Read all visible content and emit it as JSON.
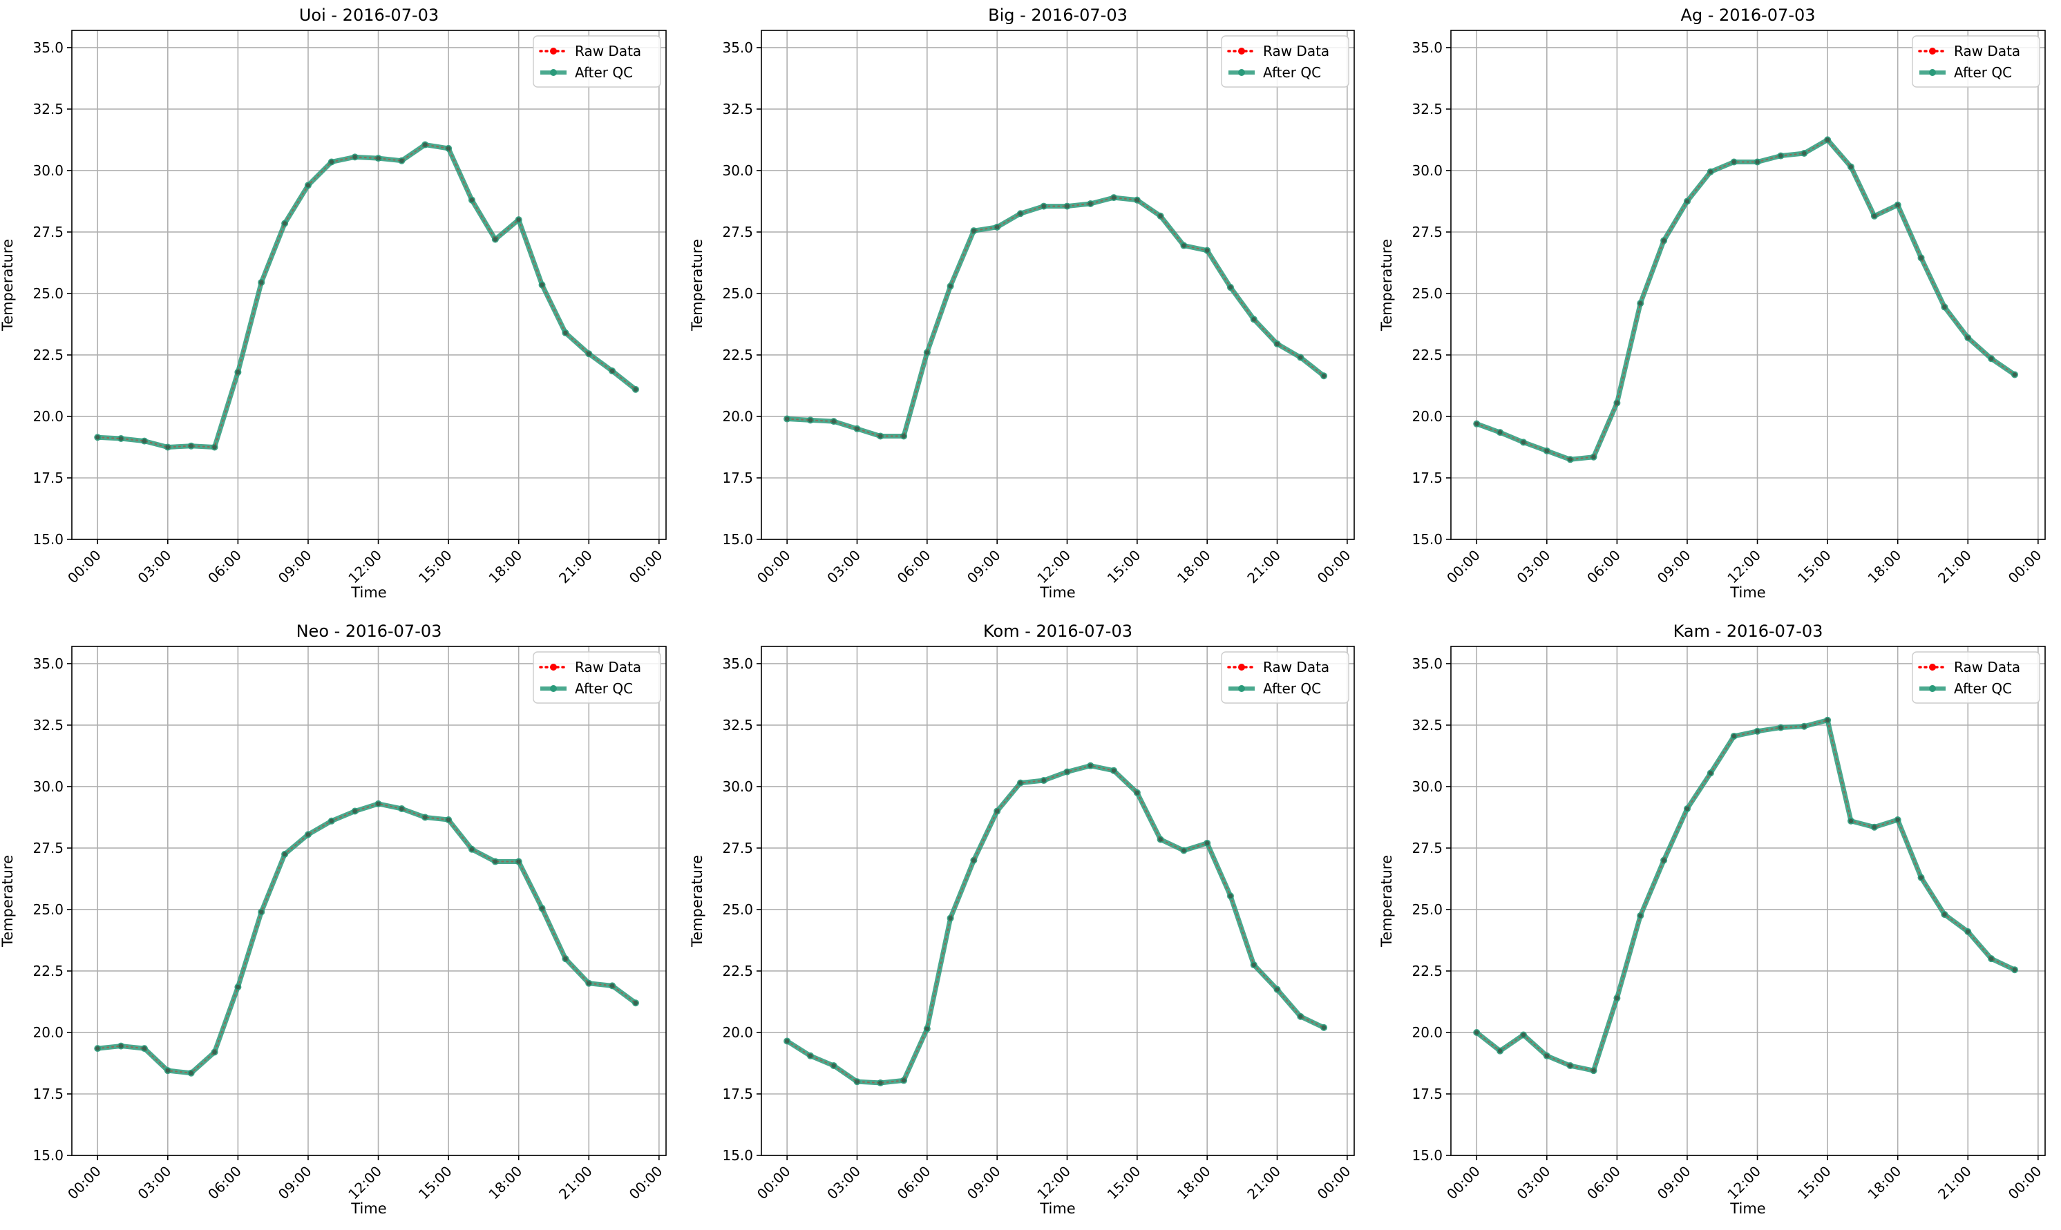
{
  "chart_data": [
    {
      "type": "line",
      "title": "Uoi - 2016-07-03",
      "xlabel": "Time",
      "ylabel": "Temperature",
      "x": [
        "00:00",
        "01:00",
        "02:00",
        "03:00",
        "04:00",
        "05:00",
        "06:00",
        "07:00",
        "08:00",
        "09:00",
        "10:00",
        "11:00",
        "12:00",
        "13:00",
        "14:00",
        "15:00",
        "16:00",
        "17:00",
        "18:00",
        "19:00",
        "20:00",
        "21:00",
        "22:00",
        "23:00"
      ],
      "x_ticks": [
        "00:00",
        "03:00",
        "06:00",
        "09:00",
        "12:00",
        "15:00",
        "18:00",
        "21:00",
        "00:00"
      ],
      "y_ticks": [
        "15.0",
        "17.5",
        "20.0",
        "22.5",
        "25.0",
        "27.5",
        "30.0",
        "32.5",
        "35.0"
      ],
      "ylim": [
        15.0,
        35.7
      ],
      "series": [
        {
          "name": "Raw Data",
          "color": "#ff0000",
          "values": [
            19.15,
            19.1,
            19.0,
            18.75,
            18.8,
            18.75,
            21.8,
            25.45,
            27.85,
            29.4,
            30.35,
            30.55,
            30.5,
            30.4,
            31.05,
            30.9,
            28.8,
            27.2,
            28.0,
            25.35,
            23.4,
            22.55,
            21.85,
            21.1
          ]
        },
        {
          "name": "After QC",
          "color": "#1a8a6a",
          "values": [
            19.15,
            19.1,
            19.0,
            18.75,
            18.8,
            18.75,
            21.8,
            25.45,
            27.85,
            29.4,
            30.35,
            30.55,
            30.5,
            30.4,
            31.05,
            30.9,
            28.8,
            27.2,
            28.0,
            25.35,
            23.4,
            22.55,
            21.85,
            21.1
          ]
        }
      ],
      "grid": true,
      "legend": "upper-right"
    },
    {
      "type": "line",
      "title": "Big - 2016-07-03",
      "xlabel": "Time",
      "ylabel": "Temperature",
      "x": [
        "00:00",
        "01:00",
        "02:00",
        "03:00",
        "04:00",
        "05:00",
        "06:00",
        "07:00",
        "08:00",
        "09:00",
        "10:00",
        "11:00",
        "12:00",
        "13:00",
        "14:00",
        "15:00",
        "16:00",
        "17:00",
        "18:00",
        "19:00",
        "20:00",
        "21:00",
        "22:00",
        "23:00"
      ],
      "x_ticks": [
        "00:00",
        "03:00",
        "06:00",
        "09:00",
        "12:00",
        "15:00",
        "18:00",
        "21:00",
        "00:00"
      ],
      "y_ticks": [
        "15.0",
        "17.5",
        "20.0",
        "22.5",
        "25.0",
        "27.5",
        "30.0",
        "32.5",
        "35.0"
      ],
      "ylim": [
        15.0,
        35.7
      ],
      "series": [
        {
          "name": "Raw Data",
          "color": "#ff0000",
          "values": [
            19.9,
            19.85,
            19.8,
            19.5,
            19.2,
            19.2,
            22.6,
            25.3,
            27.55,
            27.7,
            28.25,
            28.55,
            28.55,
            28.65,
            28.9,
            28.8,
            28.15,
            26.95,
            26.75,
            25.25,
            23.95,
            22.95,
            22.4,
            21.65
          ]
        },
        {
          "name": "After QC",
          "color": "#1a8a6a",
          "values": [
            19.9,
            19.85,
            19.8,
            19.5,
            19.2,
            19.2,
            22.6,
            25.3,
            27.55,
            27.7,
            28.25,
            28.55,
            28.55,
            28.65,
            28.9,
            28.8,
            28.15,
            26.95,
            26.75,
            25.25,
            23.95,
            22.95,
            22.4,
            21.65
          ]
        }
      ],
      "grid": true,
      "legend": "upper-right"
    },
    {
      "type": "line",
      "title": "Ag - 2016-07-03",
      "xlabel": "Time",
      "ylabel": "Temperature",
      "x": [
        "00:00",
        "01:00",
        "02:00",
        "03:00",
        "04:00",
        "05:00",
        "06:00",
        "07:00",
        "08:00",
        "09:00",
        "10:00",
        "11:00",
        "12:00",
        "13:00",
        "14:00",
        "15:00",
        "16:00",
        "17:00",
        "18:00",
        "19:00",
        "20:00",
        "21:00",
        "22:00",
        "23:00"
      ],
      "x_ticks": [
        "00:00",
        "03:00",
        "06:00",
        "09:00",
        "12:00",
        "15:00",
        "18:00",
        "21:00",
        "00:00"
      ],
      "y_ticks": [
        "15.0",
        "17.5",
        "20.0",
        "22.5",
        "25.0",
        "27.5",
        "30.0",
        "32.5",
        "35.0"
      ],
      "ylim": [
        15.0,
        35.7
      ],
      "series": [
        {
          "name": "Raw Data",
          "color": "#ff0000",
          "values": [
            19.7,
            19.35,
            18.95,
            18.6,
            18.25,
            18.35,
            20.55,
            24.6,
            27.15,
            28.75,
            29.95,
            30.35,
            30.35,
            30.6,
            30.7,
            31.25,
            30.15,
            28.15,
            28.6,
            26.45,
            24.45,
            23.2,
            22.35,
            21.7
          ]
        },
        {
          "name": "After QC",
          "color": "#1a8a6a",
          "values": [
            19.7,
            19.35,
            18.95,
            18.6,
            18.25,
            18.35,
            20.55,
            24.6,
            27.15,
            28.75,
            29.95,
            30.35,
            30.35,
            30.6,
            30.7,
            31.25,
            30.15,
            28.15,
            28.6,
            26.45,
            24.45,
            23.2,
            22.35,
            21.7
          ]
        }
      ],
      "grid": true,
      "legend": "upper-right"
    },
    {
      "type": "line",
      "title": "Neo - 2016-07-03",
      "xlabel": "Time",
      "ylabel": "Temperature",
      "x": [
        "00:00",
        "01:00",
        "02:00",
        "03:00",
        "04:00",
        "05:00",
        "06:00",
        "07:00",
        "08:00",
        "09:00",
        "10:00",
        "11:00",
        "12:00",
        "13:00",
        "14:00",
        "15:00",
        "16:00",
        "17:00",
        "18:00",
        "19:00",
        "20:00",
        "21:00",
        "22:00",
        "23:00"
      ],
      "x_ticks": [
        "00:00",
        "03:00",
        "06:00",
        "09:00",
        "12:00",
        "15:00",
        "18:00",
        "21:00",
        "00:00"
      ],
      "y_ticks": [
        "15.0",
        "17.5",
        "20.0",
        "22.5",
        "25.0",
        "27.5",
        "30.0",
        "32.5",
        "35.0"
      ],
      "ylim": [
        15.0,
        35.7
      ],
      "series": [
        {
          "name": "Raw Data",
          "color": "#ff0000",
          "values": [
            19.35,
            19.45,
            19.35,
            18.45,
            18.35,
            19.2,
            21.85,
            24.9,
            27.25,
            28.05,
            28.6,
            29.0,
            29.3,
            29.1,
            28.75,
            28.65,
            27.45,
            26.95,
            26.95,
            25.05,
            23.0,
            22.0,
            21.9,
            21.2
          ]
        },
        {
          "name": "After QC",
          "color": "#1a8a6a",
          "values": [
            19.35,
            19.45,
            19.35,
            18.45,
            18.35,
            19.2,
            21.85,
            24.9,
            27.25,
            28.05,
            28.6,
            29.0,
            29.3,
            29.1,
            28.75,
            28.65,
            27.45,
            26.95,
            26.95,
            25.05,
            23.0,
            22.0,
            21.9,
            21.2
          ]
        }
      ],
      "grid": true,
      "legend": "upper-right"
    },
    {
      "type": "line",
      "title": "Kom - 2016-07-03",
      "xlabel": "Time",
      "ylabel": "Temperature",
      "x": [
        "00:00",
        "01:00",
        "02:00",
        "03:00",
        "04:00",
        "05:00",
        "06:00",
        "07:00",
        "08:00",
        "09:00",
        "10:00",
        "11:00",
        "12:00",
        "13:00",
        "14:00",
        "15:00",
        "16:00",
        "17:00",
        "18:00",
        "19:00",
        "20:00",
        "21:00",
        "22:00",
        "23:00"
      ],
      "x_ticks": [
        "00:00",
        "03:00",
        "06:00",
        "09:00",
        "12:00",
        "15:00",
        "18:00",
        "21:00",
        "00:00"
      ],
      "y_ticks": [
        "15.0",
        "17.5",
        "20.0",
        "22.5",
        "25.0",
        "27.5",
        "30.0",
        "32.5",
        "35.0"
      ],
      "ylim": [
        15.0,
        35.7
      ],
      "series": [
        {
          "name": "Raw Data",
          "color": "#ff0000",
          "values": [
            19.65,
            19.05,
            18.65,
            18.0,
            17.95,
            18.05,
            20.15,
            24.65,
            27.0,
            29.0,
            30.15,
            30.25,
            30.6,
            30.85,
            30.65,
            29.75,
            27.85,
            27.4,
            27.7,
            25.55,
            22.75,
            21.75,
            20.65,
            20.2
          ]
        },
        {
          "name": "After QC",
          "color": "#1a8a6a",
          "values": [
            19.65,
            19.05,
            18.65,
            18.0,
            17.95,
            18.05,
            20.15,
            24.65,
            27.0,
            29.0,
            30.15,
            30.25,
            30.6,
            30.85,
            30.65,
            29.75,
            27.85,
            27.4,
            27.7,
            25.55,
            22.75,
            21.75,
            20.65,
            20.2
          ]
        }
      ],
      "grid": true,
      "legend": "upper-right"
    },
    {
      "type": "line",
      "title": "Kam - 2016-07-03",
      "xlabel": "Time",
      "ylabel": "Temperature",
      "x": [
        "00:00",
        "01:00",
        "02:00",
        "03:00",
        "04:00",
        "05:00",
        "06:00",
        "07:00",
        "08:00",
        "09:00",
        "10:00",
        "11:00",
        "12:00",
        "13:00",
        "14:00",
        "15:00",
        "16:00",
        "17:00",
        "18:00",
        "19:00",
        "20:00",
        "21:00",
        "22:00",
        "23:00"
      ],
      "x_ticks": [
        "00:00",
        "03:00",
        "06:00",
        "09:00",
        "12:00",
        "15:00",
        "18:00",
        "21:00",
        "00:00"
      ],
      "y_ticks": [
        "15.0",
        "17.5",
        "20.0",
        "22.5",
        "25.0",
        "27.5",
        "30.0",
        "32.5",
        "35.0"
      ],
      "ylim": [
        15.0,
        35.7
      ],
      "series": [
        {
          "name": "Raw Data",
          "color": "#ff0000",
          "values": [
            20.0,
            19.25,
            19.9,
            19.05,
            18.65,
            18.45,
            21.4,
            24.75,
            27.0,
            29.1,
            30.55,
            32.05,
            32.25,
            32.4,
            32.45,
            32.7,
            28.6,
            28.35,
            28.65,
            26.3,
            24.8,
            24.1,
            23.0,
            22.55
          ]
        },
        {
          "name": "After QC",
          "color": "#1a8a6a",
          "values": [
            20.0,
            19.25,
            19.9,
            19.05,
            18.65,
            18.45,
            21.4,
            24.75,
            27.0,
            29.1,
            30.55,
            32.05,
            32.25,
            32.4,
            32.45,
            32.7,
            28.6,
            28.35,
            28.65,
            26.3,
            24.8,
            24.1,
            23.0,
            22.55
          ]
        }
      ],
      "grid": true,
      "legend": "upper-right"
    }
  ]
}
